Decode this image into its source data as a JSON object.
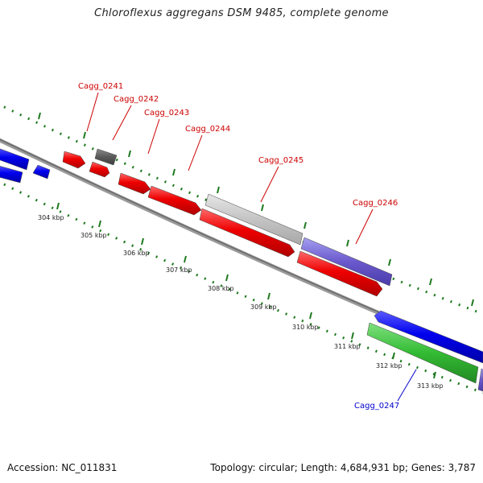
{
  "title": "Chloroflexus aggregans DSM 9485, complete genome",
  "footer": {
    "accession": "Accession: NC_011831",
    "stats": "Topology: circular; Length: 4,684,931 bp; Genes: 3,787"
  },
  "colors": {
    "label_red": "#cc0000",
    "label_blue": "#0000cc",
    "backbone": "#8a8a8a",
    "tick_green": "#1f7a1f"
  },
  "ticks": [
    "304 kbp",
    "305 kbp",
    "306 kbp",
    "307 kbp",
    "308 kbp",
    "309 kbp",
    "310 kbp",
    "311 kbp",
    "312 kbp",
    "313 kbp"
  ],
  "gene_labels": [
    {
      "name": "Cagg_0241",
      "strand": "forward"
    },
    {
      "name": "Cagg_0242",
      "strand": "forward"
    },
    {
      "name": "Cagg_0243",
      "strand": "forward"
    },
    {
      "name": "Cagg_0244",
      "strand": "forward"
    },
    {
      "name": "Cagg_0245",
      "strand": "forward"
    },
    {
      "name": "Cagg_0246",
      "strand": "forward"
    },
    {
      "name": "Cagg_0247",
      "strand": "reverse"
    }
  ]
}
